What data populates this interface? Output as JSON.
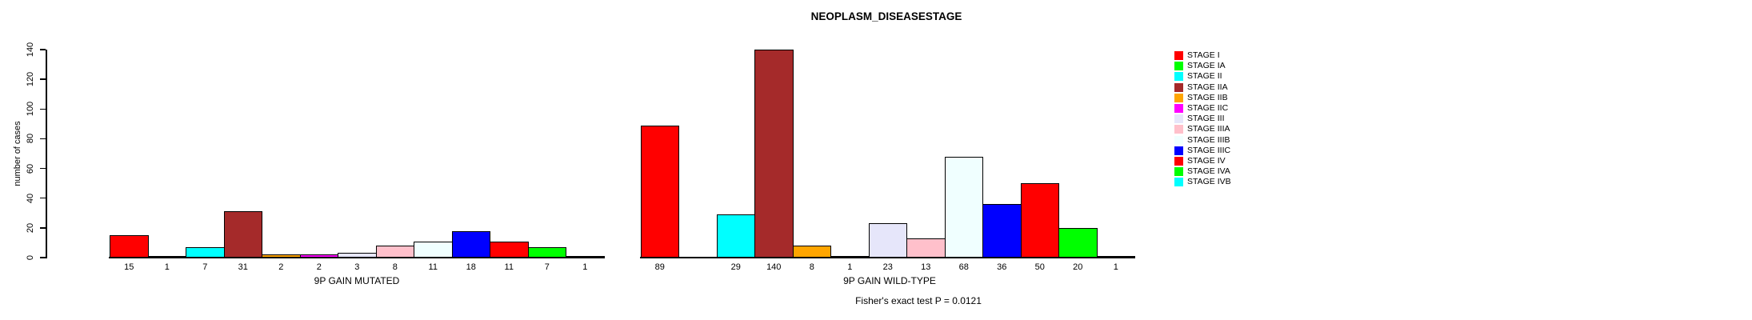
{
  "title": "NEOPLASM_DISEASESTAGE",
  "chart_data": {
    "type": "bar",
    "title": "NEOPLASM_DISEASESTAGE",
    "ylabel": "number of cases",
    "ylim": [
      0,
      140
    ],
    "yticks": [
      0,
      20,
      40,
      60,
      80,
      100,
      120,
      140
    ],
    "grid": false,
    "legend_position": "right",
    "zero_bars_hidden": true,
    "categories": [
      "STAGE I",
      "STAGE IA",
      "STAGE II",
      "STAGE IIA",
      "STAGE IIB",
      "STAGE IIC",
      "STAGE III",
      "STAGE IIIA",
      "STAGE IIIB",
      "STAGE IIIC",
      "STAGE IV",
      "STAGE IVA",
      "STAGE IVB"
    ],
    "colors": [
      "#FF0000",
      "#00FF00",
      "#00FFFF",
      "#A52A2A",
      "#FFA500",
      "#FF00FF",
      "#E6E6FA",
      "#FFC0CB",
      "#F0FFFF",
      "#0000FF",
      "#FF0000",
      "#00FF00",
      "#00FFFF"
    ],
    "series": [
      {
        "name": "9P GAIN MUTATED",
        "values": [
          15,
          1,
          7,
          31,
          2,
          2,
          3,
          8,
          11,
          18,
          11,
          7,
          1
        ]
      },
      {
        "name": "9P GAIN WILD-TYPE",
        "values": [
          89,
          0,
          29,
          140,
          8,
          1,
          23,
          13,
          68,
          36,
          50,
          20,
          1
        ]
      }
    ],
    "annotation": "Fisher's exact test P = 0.0121"
  },
  "legend": {
    "items": [
      {
        "label": "STAGE I",
        "color": "#FF0000"
      },
      {
        "label": "STAGE IA",
        "color": "#00FF00"
      },
      {
        "label": "STAGE II",
        "color": "#00FFFF"
      },
      {
        "label": "STAGE IIA",
        "color": "#A52A2A"
      },
      {
        "label": "STAGE IIB",
        "color": "#FFA500"
      },
      {
        "label": "STAGE IIC",
        "color": "#FF00FF"
      },
      {
        "label": "STAGE III",
        "color": "#E6E6FA"
      },
      {
        "label": "STAGE IIIA",
        "color": "#FFC0CB"
      },
      {
        "label": "STAGE IIIB",
        "color": "#F0FFFF"
      },
      {
        "label": "STAGE IIIC",
        "color": "#0000FF"
      },
      {
        "label": "STAGE IV",
        "color": "#FF0000"
      },
      {
        "label": "STAGE IVA",
        "color": "#00FF00"
      },
      {
        "label": "STAGE IVB",
        "color": "#00FFFF"
      }
    ]
  }
}
